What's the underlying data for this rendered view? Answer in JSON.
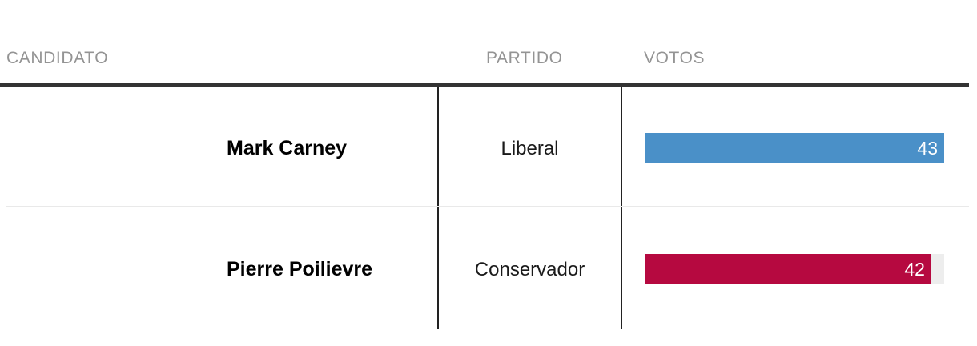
{
  "colors": {
    "header_text": "#949494",
    "header_rule": "#333333",
    "column_divider": "#222222",
    "row_divider": "#e9e9e9",
    "bar_track": "#ededed",
    "bar_value_text": "#ffffff",
    "candidate_text": "#000000",
    "party_text": "#1a1a1a"
  },
  "table": {
    "columns": [
      {
        "id": "candidate",
        "label": "CANDIDATO"
      },
      {
        "id": "party",
        "label": "PARTIDO"
      },
      {
        "id": "votes",
        "label": "VOTOS"
      }
    ],
    "rows": [
      {
        "candidate": "Mark Carney",
        "party": "Liberal",
        "votes": "43",
        "bar_color": "#4a90c8",
        "bar_pct": 100
      },
      {
        "candidate": "Pierre Poilievre",
        "party": "Conservador",
        "votes": "42",
        "bar_color": "#b60940",
        "bar_pct": 95.7
      }
    ]
  },
  "chart_data": {
    "type": "bar",
    "orientation": "horizontal",
    "title": "",
    "xlabel": "",
    "ylabel": "VOTOS",
    "categories": [
      "Mark Carney",
      "Pierre Poilievre"
    ],
    "category_parties": [
      "Liberal",
      "Conservador"
    ],
    "series": [
      {
        "name": "VOTOS",
        "values": [
          43,
          42
        ]
      }
    ],
    "value_labels": [
      "43",
      "42"
    ],
    "bar_colors": [
      "#4a90c8",
      "#b60940"
    ],
    "track_color": "#ededed",
    "xlim": [
      0,
      43
    ],
    "grid": false,
    "legend": false,
    "value_label_position": "inside-end"
  }
}
